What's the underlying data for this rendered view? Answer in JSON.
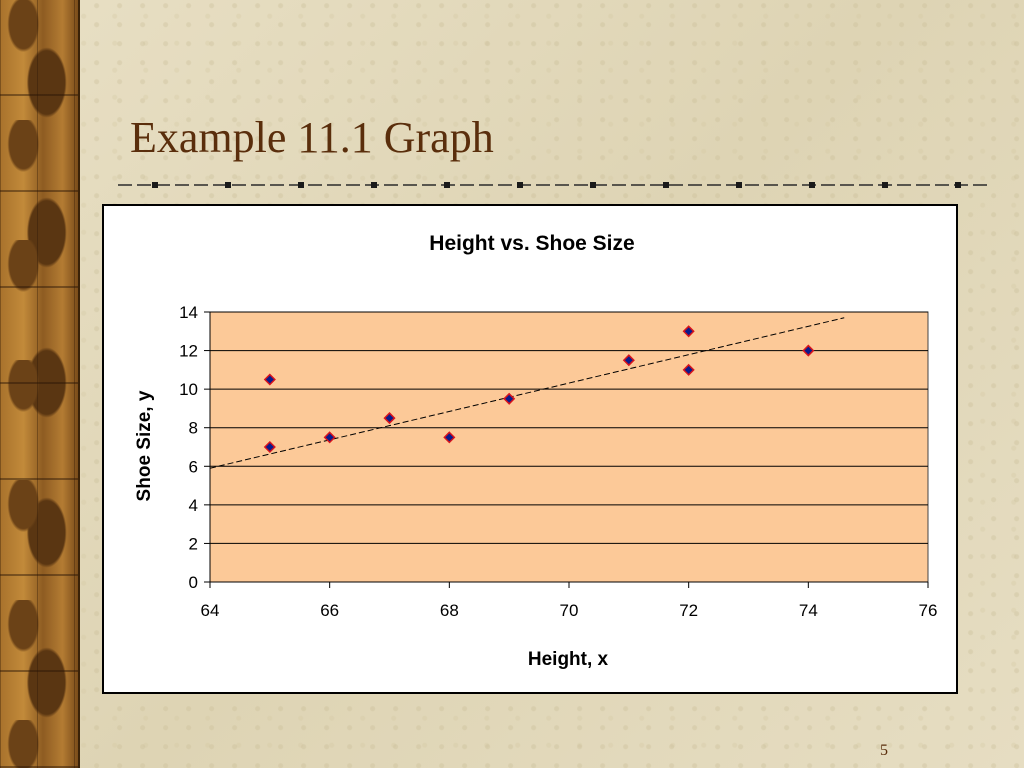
{
  "slide": {
    "title": "Example 11.1 Graph",
    "page_number": "5"
  },
  "colors": {
    "title": "#5a2e0c",
    "plot_area": "#fcc998",
    "marker_fill": "#0a1a8c",
    "marker_stroke": "#d8141c",
    "trendline": "#000000"
  },
  "chart_data": {
    "type": "scatter",
    "title": "Height vs. Shoe Size",
    "xlabel": "Height, x",
    "ylabel": "Shoe Size, y",
    "xlim": [
      64,
      76
    ],
    "ylim": [
      0,
      14
    ],
    "xticks": [
      64,
      66,
      68,
      70,
      72,
      74,
      76
    ],
    "yticks": [
      0,
      2,
      4,
      6,
      8,
      10,
      12,
      14
    ],
    "grid": "horizontal",
    "legend": "none",
    "points": [
      {
        "x": 65,
        "y": 10.5
      },
      {
        "x": 65,
        "y": 7
      },
      {
        "x": 66,
        "y": 7.5
      },
      {
        "x": 67,
        "y": 8.5
      },
      {
        "x": 68,
        "y": 7.5
      },
      {
        "x": 69,
        "y": 9.5
      },
      {
        "x": 71,
        "y": 11.5
      },
      {
        "x": 72,
        "y": 13
      },
      {
        "x": 72,
        "y": 11
      },
      {
        "x": 74,
        "y": 12
      }
    ],
    "trendline": {
      "style": "dashed",
      "from": {
        "x": 64,
        "y": 5.9
      },
      "to": {
        "x": 74.6,
        "y": 13.7
      }
    }
  }
}
